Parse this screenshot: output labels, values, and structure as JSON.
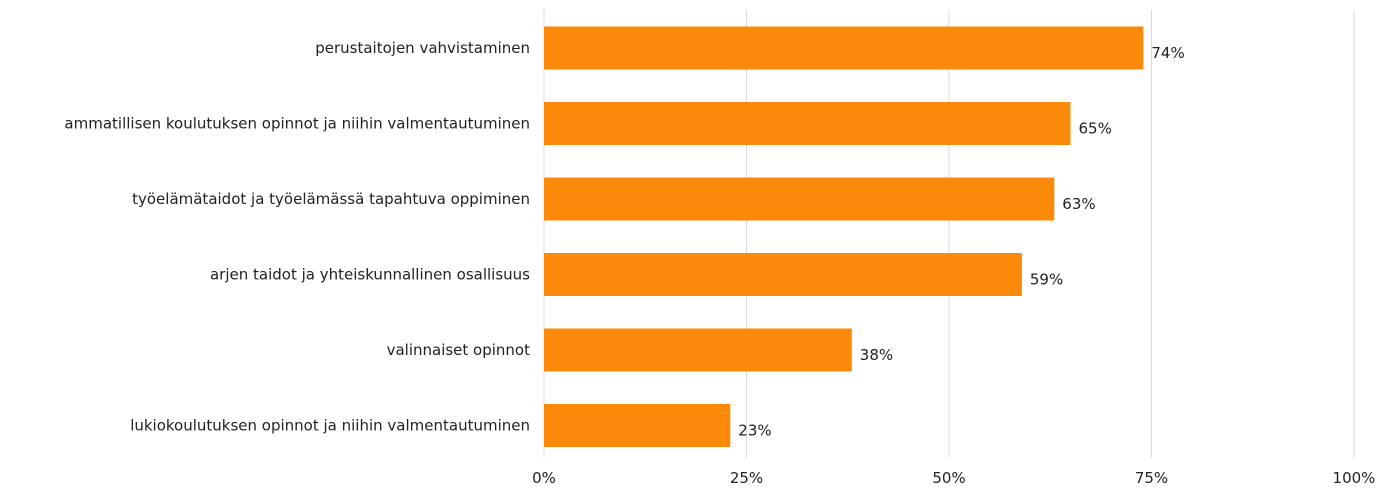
{
  "chart_data": {
    "type": "bar",
    "orientation": "horizontal",
    "categories": [
      "perustaitojen vahvistaminen",
      "ammatillisen koulutuksen opinnot ja niihin valmentautuminen",
      "työelämätaidot ja työelämässä tapahtuva oppiminen",
      "arjen taidot ja yhteiskunnallinen osallisuus",
      "valinnaiset opinnot",
      "lukiokoulutuksen opinnot ja niihin valmentautuminen"
    ],
    "values": [
      74,
      65,
      63,
      59,
      38,
      23
    ],
    "data_labels": [
      "74%",
      "65%",
      "63%",
      "59%",
      "38%",
      "23%"
    ],
    "xlim": [
      0,
      100
    ],
    "x_ticks": [
      0,
      25,
      50,
      75,
      100
    ],
    "x_tick_labels": [
      "0%",
      "25%",
      "50%",
      "75%",
      "100%"
    ],
    "grid": "vertical",
    "bar_color": "#fb8a0a",
    "grid_color": "#d9d9d9",
    "text_color": "#222222",
    "title": "",
    "xlabel": "",
    "ylabel": ""
  }
}
